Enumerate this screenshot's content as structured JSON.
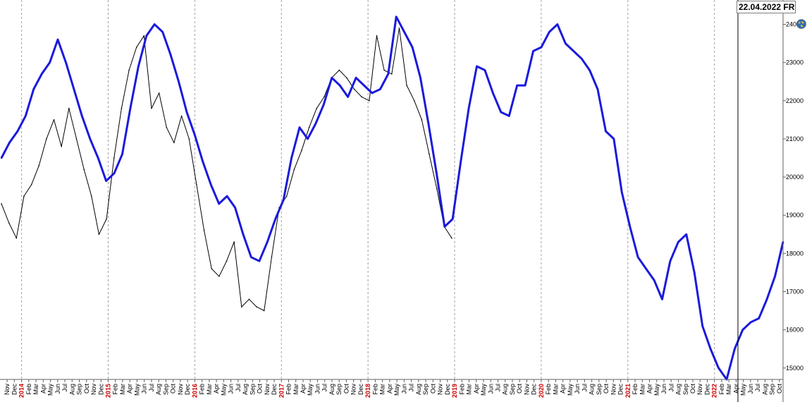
{
  "header": {
    "date_label": "22.04.2022 FR"
  },
  "icons": {
    "globe": "globe-icon"
  },
  "colors": {
    "price": "#000000",
    "forecast": "#1a1adc",
    "year_label": "#cc0000",
    "grid": "#a0a0a0"
  },
  "chart_data": {
    "type": "line",
    "ylim": [
      14700,
      24600
    ],
    "yticks": [
      15000,
      16000,
      17000,
      18000,
      19000,
      20000,
      21000,
      22000,
      23000,
      24000
    ],
    "x_months": [
      "Nov",
      "Dec",
      "2014",
      "Feb",
      "Mar",
      "Apr",
      "May",
      "Jun",
      "Jul",
      "Aug",
      "Sep",
      "Oct",
      "Nov",
      "Dec",
      "2015",
      "Feb",
      "Mar",
      "Apr",
      "May",
      "Jun",
      "Jul",
      "Aug",
      "Sep",
      "Oct",
      "Nov",
      "Dec",
      "2016",
      "Feb",
      "Mar",
      "Apr",
      "May",
      "Jun",
      "Jul",
      "Aug",
      "Sep",
      "Oct",
      "Nov",
      "Dec",
      "2017",
      "Feb",
      "Mar",
      "Apr",
      "May",
      "Jun",
      "Jul",
      "Aug",
      "Sep",
      "Oct",
      "Nov",
      "Dec",
      "2018",
      "Feb",
      "Mar",
      "Apr",
      "May",
      "Jun",
      "Jul",
      "Aug",
      "Sep",
      "Oct",
      "Nov",
      "Dec",
      "2019",
      "Feb",
      "Mar",
      "Apr",
      "May",
      "Jun",
      "Jul",
      "Aug",
      "Sep",
      "Oct",
      "Nov",
      "Dec",
      "2020",
      "Feb",
      "Mar",
      "Apr",
      "May",
      "Jun",
      "Jul",
      "Aug",
      "Sep",
      "Oct",
      "Nov",
      "Dec",
      "2021",
      "Feb",
      "Mar",
      "Apr",
      "May",
      "Jun",
      "Jul",
      "Aug",
      "Sep",
      "Oct",
      "Nov",
      "Dec",
      "2022",
      "Feb",
      "Mar",
      "Apr",
      "May",
      "Jun",
      "Jul",
      "Aug",
      "Sep",
      "Oct"
    ],
    "series": [
      {
        "values": [
          19300,
          18800,
          18400,
          19500,
          19800,
          20300,
          21000,
          21500,
          20800,
          21800,
          21000,
          20200,
          19500,
          18500,
          18900,
          20500,
          21800,
          22800,
          23400,
          23700,
          21800,
          22200,
          21300,
          20900,
          21600,
          21000,
          19800,
          18600,
          17600,
          17400,
          17800,
          18300,
          16600,
          16800,
          16600,
          16500,
          17900,
          19200,
          19500,
          20200,
          20700,
          21300,
          21800,
          22100,
          22600,
          22800,
          22600,
          22300,
          22100,
          22000,
          23700,
          22800,
          22700,
          23900,
          22400,
          22000,
          21500,
          20600,
          19700,
          18700,
          18400
        ]
      },
      {
        "values": [
          20500,
          20900,
          21200,
          21600,
          22300,
          22700,
          23000,
          23600,
          23000,
          22300,
          21600,
          21000,
          20500,
          19900,
          20100,
          20600,
          21800,
          22900,
          23700,
          24000,
          23800,
          23200,
          22500,
          21700,
          21100,
          20400,
          19800,
          19300,
          19500,
          19200,
          18500,
          17900,
          17800,
          18300,
          18900,
          19400,
          20500,
          21300,
          21000,
          21400,
          21900,
          22600,
          22400,
          22100,
          22600,
          22400,
          22200,
          22300,
          22700,
          24200,
          23800,
          23400,
          22600,
          21400,
          20100,
          18700,
          18900,
          20400,
          21800,
          22900,
          22800,
          22200,
          21700,
          21600,
          22400,
          22400,
          23300,
          23400,
          23800,
          24000,
          23500,
          23300,
          23100,
          22800,
          22300,
          21200,
          21000,
          19600,
          18700,
          17900,
          17600,
          17300,
          16800,
          17800,
          18300,
          18500,
          17500,
          16100,
          15500,
          15000,
          14700,
          15500,
          16000,
          16200,
          16300,
          16800,
          17400,
          18300
        ]
      }
    ]
  }
}
